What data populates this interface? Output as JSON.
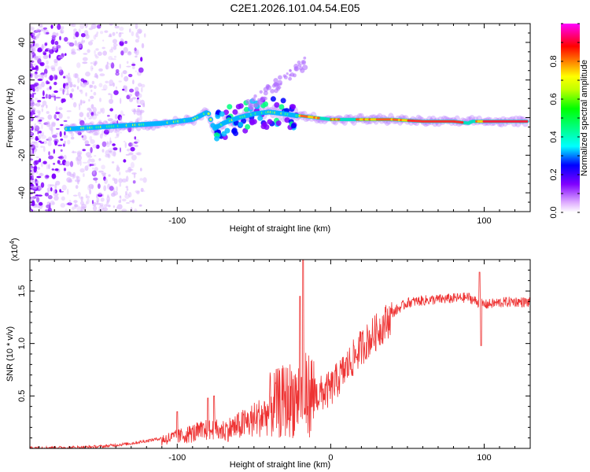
{
  "title": "C2E1.2026.101.04.54.E05",
  "chart_data": [
    {
      "type": "heatmap",
      "xlabel": "Height of straight line (km)",
      "ylabel": "Frequency (Hz)",
      "xlim": [
        -196,
        130
      ],
      "ylim": [
        -50,
        50
      ],
      "xticks": [
        -100,
        0,
        100
      ],
      "xtick_labels": [
        "-100",
        "",
        "100"
      ],
      "yticks": [
        -40,
        -20,
        0,
        20,
        40
      ],
      "ytick_labels": [
        "-40",
        "-20",
        "0",
        "20",
        "40"
      ],
      "ridge": {
        "x": [
          -170,
          -150,
          -130,
          -110,
          -90,
          -80,
          -76,
          -70,
          -60,
          -50,
          -40,
          -30,
          -22,
          -20,
          0,
          20,
          40,
          60,
          80,
          90,
          92,
          100,
          130
        ],
        "y": [
          -6,
          -5,
          -4,
          -3,
          -1,
          3,
          -6,
          -3,
          0,
          2,
          3,
          2,
          1,
          1,
          -1,
          -1,
          -1,
          -2,
          -2,
          -3,
          -2,
          -2,
          -2
        ]
      },
      "colorbar": {
        "label": "Normalized spectral amplitude",
        "ticks": [
          0.0,
          0.2,
          0.4,
          0.6,
          0.8
        ],
        "tick_labels": [
          "0.0",
          "0.2",
          "0.4",
          "0.6",
          "0.8"
        ],
        "range": [
          0,
          1
        ],
        "colors": [
          "#ffffff",
          "#8000ff",
          "#0000ff",
          "#00ffff",
          "#00ff00",
          "#ffff00",
          "#ff8000",
          "#ff0000",
          "#ff00ff"
        ]
      }
    },
    {
      "type": "line",
      "xlabel": "Height of straight line (km)",
      "ylabel": "SNR (10 * v/v)",
      "exponent_label": "(x10",
      "exponent_sup": "4",
      "exponent_close": ")",
      "xlim": [
        -196,
        130
      ],
      "ylim": [
        0,
        1.8
      ],
      "xticks": [
        -100,
        0,
        100
      ],
      "xtick_labels": [
        "-100",
        "0",
        "100"
      ],
      "yticks": [
        0.5,
        1.0,
        1.5
      ],
      "ytick_labels": [
        "0.5",
        "1.0",
        "1.5"
      ],
      "series_color": "#ee3333",
      "envelope": {
        "x": [
          -196,
          -170,
          -150,
          -130,
          -110,
          -100,
          -90,
          -80,
          -70,
          -60,
          -50,
          -40,
          -30,
          -20,
          -10,
          0,
          10,
          20,
          30,
          40,
          50,
          60,
          70,
          80,
          90,
          96,
          100,
          110,
          120,
          130
        ],
        "y": [
          0.01,
          0.01,
          0.02,
          0.05,
          0.1,
          0.13,
          0.17,
          0.2,
          0.2,
          0.25,
          0.32,
          0.4,
          0.45,
          0.5,
          0.53,
          0.6,
          0.8,
          1.0,
          1.15,
          1.3,
          1.4,
          1.42,
          1.43,
          1.44,
          1.45,
          1.4,
          1.38,
          1.4,
          1.41,
          1.4
        ]
      },
      "spikes": [
        {
          "x": -100,
          "y": 0.35
        },
        {
          "x": -80,
          "y": 0.48
        },
        {
          "x": -76,
          "y": 0.5
        },
        {
          "x": -18,
          "y": 1.8
        },
        {
          "x": -20,
          "y": 1.45
        },
        {
          "x": 97,
          "y": 1.68
        },
        {
          "x": 98,
          "y": 0.98
        }
      ]
    }
  ]
}
